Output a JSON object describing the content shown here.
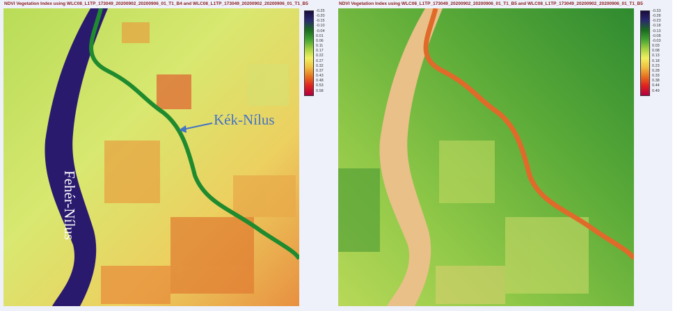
{
  "left_panel": {
    "title": "NDVI Vegetation Index using WLC08_L1TP_173049_20200902_20200906_01_T1_B4 and WLC08_L1TP_173049_20200902_20200906_01_T1_B5",
    "colorbar_ticks": [
      "-0.25",
      "-0.20",
      "-0.15",
      "-0.10",
      "-0.04",
      "0.01",
      "0.06",
      "0.11",
      "0.17",
      "0.22",
      "0.27",
      "0.32",
      "0.37",
      "0.43",
      "0.48",
      "0.53",
      "0.58"
    ],
    "colorbar_order": "inverted",
    "labels": {
      "blue_nile": "Kék-Nílus",
      "white_nile": "Fehér-Nílus"
    },
    "colors": {
      "white_nile": "#2a1a6e",
      "blue_nile": "#1f8a2e",
      "label_blue": "#4472c4"
    }
  },
  "right_panel": {
    "title": "NDVI Vegetation Index using WLC08_L1TP_173049_20200902_20200906_01_T1_B5 and WLC08_L1TP_173049_20200902_20200906_01_T1_B5",
    "colorbar_ticks": [
      "-0.33",
      "-0.28",
      "-0.23",
      "-0.18",
      "-0.13",
      "-0.08",
      "-0.03",
      "0.03",
      "0.08",
      "0.13",
      "0.18",
      "0.23",
      "0.28",
      "0.33",
      "0.38",
      "0.44",
      "0.49"
    ],
    "colorbar_order": "normal",
    "colors": {
      "white_nile": "#e8c088",
      "blue_nile": "#e06a2a"
    }
  }
}
